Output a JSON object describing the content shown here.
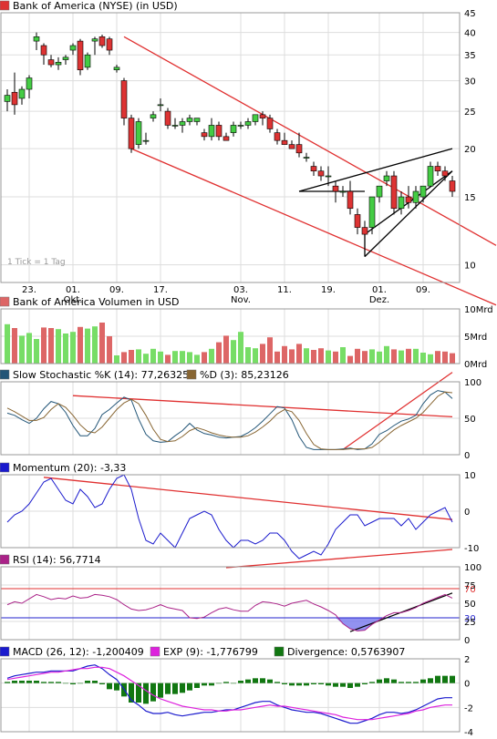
{
  "chart_data": [
    {
      "type": "candlestick",
      "title": "Bank of America (NYSE) (in USD)",
      "scale": "log",
      "ylim": [
        9,
        45
      ],
      "y_ticks": [
        10,
        15,
        20,
        25,
        30,
        35,
        40,
        45
      ],
      "x_ticks": [
        {
          "label": "23.",
          "i": 3,
          "sub": ""
        },
        {
          "label": "01.",
          "i": 9,
          "sub": "Okt."
        },
        {
          "label": "09.",
          "i": 15,
          "sub": ""
        },
        {
          "label": "17.",
          "i": 21,
          "sub": ""
        },
        {
          "label": "03.",
          "i": 32,
          "sub": "Nov."
        },
        {
          "label": "11.",
          "i": 38,
          "sub": ""
        },
        {
          "label": "19.",
          "i": 44,
          "sub": ""
        },
        {
          "label": "01.",
          "i": 51,
          "sub": "Dez."
        },
        {
          "label": "09.",
          "i": 57,
          "sub": ""
        }
      ],
      "note": "1 Tick = 1 Tag",
      "candles": [
        [
          26.5,
          28.5,
          25.0,
          27.5
        ],
        [
          28.0,
          31.5,
          24.5,
          26.0
        ],
        [
          27.0,
          29.0,
          26.0,
          28.5
        ],
        [
          28.5,
          31.0,
          27.0,
          30.5
        ],
        [
          38.0,
          40.0,
          36.0,
          39.0
        ],
        [
          37.0,
          37.5,
          33.0,
          35.0
        ],
        [
          34.0,
          35.0,
          32.5,
          33.0
        ],
        [
          33.0,
          34.5,
          32.0,
          33.5
        ],
        [
          34.0,
          35.0,
          33.0,
          34.5
        ],
        [
          36.0,
          37.5,
          35.0,
          37.0
        ],
        [
          38.0,
          38.5,
          31.0,
          32.0
        ],
        [
          32.5,
          35.5,
          32.0,
          35.0
        ],
        [
          38.0,
          39.0,
          35.0,
          38.5
        ],
        [
          39.0,
          39.5,
          36.5,
          37.0
        ],
        [
          38.5,
          39.0,
          35.0,
          36.0
        ],
        [
          32.0,
          33.0,
          31.5,
          32.5
        ],
        [
          30.0,
          30.5,
          23.0,
          24.0
        ],
        [
          24.0,
          24.5,
          19.5,
          20.0
        ],
        [
          20.5,
          24.0,
          20.0,
          23.5
        ],
        [
          21.0,
          22.0,
          20.5,
          21.0
        ],
        [
          24.0,
          25.0,
          23.5,
          24.5
        ],
        [
          26.0,
          27.0,
          25.0,
          26.0
        ],
        [
          25.0,
          25.5,
          22.5,
          23.0
        ],
        [
          23.0,
          24.0,
          22.5,
          23.0
        ],
        [
          23.0,
          24.0,
          22.0,
          23.5
        ],
        [
          23.5,
          24.5,
          23.0,
          24.0
        ],
        [
          23.5,
          24.0,
          23.0,
          24.0
        ],
        [
          22.0,
          22.5,
          21.0,
          21.5
        ],
        [
          21.5,
          24.0,
          21.0,
          23.0
        ],
        [
          23.0,
          23.5,
          21.0,
          21.5
        ],
        [
          21.5,
          22.0,
          21.0,
          21.0
        ],
        [
          22.0,
          23.5,
          21.5,
          23.0
        ],
        [
          23.0,
          23.5,
          22.5,
          23.0
        ],
        [
          23.0,
          24.0,
          22.5,
          23.5
        ],
        [
          23.5,
          24.5,
          23.0,
          24.5
        ],
        [
          24.5,
          25.0,
          23.0,
          24.0
        ],
        [
          24.0,
          24.5,
          22.0,
          22.5
        ],
        [
          22.0,
          22.5,
          20.5,
          21.0
        ],
        [
          21.0,
          22.0,
          20.5,
          20.5
        ],
        [
          20.5,
          21.0,
          20.0,
          20.0
        ],
        [
          20.5,
          22.0,
          19.0,
          19.5
        ],
        [
          19.0,
          19.5,
          18.5,
          19.0
        ],
        [
          18.0,
          18.5,
          17.0,
          17.5
        ],
        [
          17.5,
          18.0,
          16.5,
          17.0
        ],
        [
          17.0,
          18.0,
          16.0,
          17.0
        ],
        [
          16.0,
          16.5,
          14.5,
          15.5
        ],
        [
          15.5,
          16.0,
          15.0,
          15.5
        ],
        [
          15.5,
          16.5,
          13.5,
          14.0
        ],
        [
          13.5,
          14.0,
          12.0,
          12.5
        ],
        [
          12.5,
          13.0,
          11.5,
          12.0
        ],
        [
          12.5,
          15.0,
          12.0,
          15.0
        ],
        [
          15.0,
          16.0,
          14.5,
          16.0
        ],
        [
          16.5,
          17.5,
          16.0,
          17.0
        ],
        [
          17.0,
          17.5,
          13.5,
          14.0
        ],
        [
          14.0,
          15.5,
          13.5,
          15.0
        ],
        [
          15.0,
          16.0,
          14.0,
          14.5
        ],
        [
          14.5,
          16.0,
          14.0,
          15.5
        ],
        [
          15.0,
          16.0,
          14.5,
          16.0
        ],
        [
          16.0,
          18.5,
          16.0,
          18.0
        ],
        [
          18.0,
          18.5,
          17.0,
          17.5
        ],
        [
          17.5,
          18.0,
          16.5,
          17.0
        ],
        [
          16.5,
          17.0,
          15.0,
          15.5
        ]
      ],
      "lines": [
        {
          "color": "#e03030",
          "x1": 16,
          "y1": 39.0,
          "x2": 61,
          "y2": 13.0,
          "ext": "right"
        },
        {
          "color": "#e03030",
          "x1": 17,
          "y1": 20.0,
          "x2": 61,
          "y2": 8.8,
          "ext": "right"
        },
        {
          "color": "#000000",
          "x1": 40,
          "y1": 15.5,
          "x2": 61,
          "y2": 20.0
        },
        {
          "color": "#000000",
          "x1": 49,
          "y1": 12.0,
          "x2": 61,
          "y2": 17.5
        },
        {
          "color": "#000000",
          "x1": 40,
          "y1": 15.5,
          "x2": 49,
          "y2": 15.5
        },
        {
          "color": "#000000",
          "x1": 49,
          "y1": 10.5,
          "x2": 49,
          "y2": 12.0
        },
        {
          "color": "#000000",
          "x1": 49,
          "y1": 10.5,
          "x2": 61,
          "y2": 17.5
        }
      ]
    },
    {
      "type": "bar",
      "title": "Bank of America Volumen in USD",
      "ylim": [
        0,
        10
      ],
      "y_ticks": [
        {
          "v": 0,
          "label": "0Mrd"
        },
        {
          "v": 5,
          "label": "5Mrd"
        },
        {
          "v": 10,
          "label": "10Mrd"
        }
      ],
      "values": [
        7.2,
        6.5,
        5.1,
        5.6,
        4.5,
        6.6,
        6.5,
        6.3,
        5.5,
        5.8,
        6.7,
        6.4,
        6.8,
        7.5,
        5.0,
        1.5,
        2.1,
        2.5,
        2.6,
        1.8,
        2.7,
        2.2,
        1.6,
        2.3,
        2.3,
        2.1,
        1.6,
        2.1,
        2.7,
        3.9,
        5.1,
        4.3,
        5.8,
        3.0,
        2.8,
        3.6,
        4.8,
        2.2,
        3.2,
        2.6,
        3.6,
        2.8,
        2.5,
        2.8,
        2.4,
        2.2,
        3.0,
        1.4,
        2.7,
        2.3,
        2.6,
        2.2,
        3.2,
        2.6,
        2.4,
        2.7,
        2.7,
        2.0,
        1.7,
        2.3,
        2.2,
        1.9
      ]
    },
    {
      "type": "line",
      "title_k": "Slow Stochastic %K (14): 77,26325",
      "title_d": "%D (3): 85,23126",
      "ylim": [
        0,
        100
      ],
      "y_ticks": [
        0,
        50,
        100
      ],
      "series": [
        {
          "name": "Slow Stochastic %K (14): 77,26325",
          "color": "#225577",
          "values": [
            57,
            54,
            48,
            43,
            50,
            63,
            73,
            70,
            58,
            40,
            26,
            26,
            36,
            55,
            62,
            71,
            79,
            75,
            49,
            28,
            19,
            17,
            18,
            26,
            33,
            43,
            34,
            29,
            27,
            24,
            23,
            24,
            25,
            30,
            37,
            46,
            56,
            66,
            64,
            48,
            25,
            10,
            7,
            7,
            7,
            7,
            8,
            9,
            7,
            8,
            15,
            28,
            33,
            40,
            46,
            49,
            54,
            70,
            82,
            88,
            86,
            77
          ]
        },
        {
          "name": "%D (3): 85,23126",
          "color": "#886633",
          "values": [
            64,
            59,
            53,
            47,
            47,
            51,
            62,
            70,
            65,
            54,
            41,
            32,
            30,
            38,
            50,
            62,
            71,
            76,
            70,
            54,
            35,
            21,
            18,
            19,
            25,
            33,
            37,
            34,
            30,
            27,
            25,
            24,
            24,
            26,
            31,
            38,
            46,
            56,
            62,
            59,
            47,
            29,
            14,
            8,
            7,
            7,
            7,
            8,
            8,
            8,
            10,
            17,
            26,
            34,
            40,
            45,
            50,
            58,
            69,
            80,
            86,
            85
          ]
        }
      ],
      "lines": [
        {
          "color": "#e03030",
          "x1": 9,
          "y1": 81,
          "x2": 61,
          "y2": 52
        },
        {
          "color": "#e03030",
          "x1": 46,
          "y1": 7,
          "x2": 61,
          "y2": 113
        }
      ]
    },
    {
      "type": "line",
      "title": "Momentum (20): -3,33",
      "ylim": [
        -10,
        10
      ],
      "y_ticks": [
        -10,
        0,
        10
      ],
      "series": [
        {
          "name": "Momentum (20): -3,33",
          "color": "#1a1acd",
          "values": [
            -3,
            -1,
            0,
            2,
            5,
            8,
            9,
            6,
            3,
            2,
            6,
            4,
            1,
            2,
            6,
            9,
            10,
            6,
            -2,
            -8,
            -9,
            -6,
            -8,
            -10,
            -6,
            -2,
            -1,
            0,
            -1,
            -5,
            -8,
            -10,
            -8,
            -8,
            -9,
            -8,
            -6,
            -6,
            -8,
            -11,
            -13,
            -12,
            -11,
            -12,
            -9,
            -5,
            -3,
            -1,
            -1,
            -4,
            -3,
            -2,
            -2,
            -2,
            -4,
            -2,
            -5,
            -3,
            -1,
            0,
            1,
            -3
          ]
        }
      ],
      "lines": [
        {
          "color": "#e03030",
          "x1": 5,
          "y1": 9.3,
          "x2": 61,
          "y2": -2.3
        },
        {
          "color": "#e03030",
          "x1": 30,
          "y1": -15.5,
          "x2": 61,
          "y2": -10.5
        }
      ]
    },
    {
      "type": "line",
      "title": "RSI (14): 56,7714",
      "ylim": [
        0,
        100
      ],
      "y_ticks": [
        0,
        25,
        50,
        75,
        100
      ],
      "ref_lines": [
        {
          "v": 70,
          "label": "70",
          "color": "#e03030"
        },
        {
          "v": 30,
          "label": "30",
          "color": "#2222cc"
        }
      ],
      "series": [
        {
          "name": "RSI (14): 56,7714",
          "color": "#aa2288",
          "values": [
            48,
            52,
            50,
            56,
            62,
            59,
            55,
            57,
            56,
            60,
            57,
            58,
            62,
            61,
            59,
            55,
            48,
            42,
            40,
            41,
            44,
            48,
            44,
            42,
            40,
            30,
            29,
            31,
            37,
            42,
            44,
            41,
            39,
            39,
            47,
            52,
            51,
            49,
            46,
            50,
            52,
            54,
            49,
            45,
            40,
            34,
            22,
            15,
            12,
            13,
            21,
            27,
            33,
            37,
            37,
            40,
            44,
            50,
            54,
            58,
            62,
            57
          ]
        }
      ],
      "lines": [
        {
          "color": "#000000",
          "x1": 47,
          "y1": 11,
          "x2": 61,
          "y2": 64
        }
      ]
    },
    {
      "type": "line",
      "title_macd": "MACD (26, 12): -1,200409",
      "title_exp": "EXP (9): -1,776799",
      "title_div": "Divergence: 0,5763907",
      "ylim": [
        -4,
        2
      ],
      "y_ticks": [
        -4,
        -2,
        0,
        2
      ],
      "series": [
        {
          "name": "MACD (26, 12): -1,200409",
          "color": "#1a1acd",
          "values": [
            0.4,
            0.6,
            0.7,
            0.8,
            0.9,
            0.9,
            1.0,
            1.0,
            1.0,
            1.0,
            1.2,
            1.4,
            1.5,
            1.2,
            0.7,
            0.3,
            -0.5,
            -1.4,
            -1.8,
            -2.3,
            -2.5,
            -2.5,
            -2.4,
            -2.6,
            -2.7,
            -2.6,
            -2.5,
            -2.4,
            -2.4,
            -2.3,
            -2.2,
            -2.2,
            -2.0,
            -1.8,
            -1.6,
            -1.5,
            -1.5,
            -1.8,
            -2.0,
            -2.2,
            -2.3,
            -2.4,
            -2.4,
            -2.5,
            -2.7,
            -2.9,
            -3.1,
            -3.3,
            -3.3,
            -3.1,
            -2.9,
            -2.6,
            -2.4,
            -2.4,
            -2.5,
            -2.4,
            -2.2,
            -1.9,
            -1.6,
            -1.3,
            -1.2,
            -1.2
          ]
        },
        {
          "name": "EXP (9): -1,776799",
          "color": "#dd22dd",
          "values": [
            0.3,
            0.4,
            0.5,
            0.6,
            0.7,
            0.8,
            0.9,
            0.9,
            1.0,
            1.1,
            1.2,
            1.2,
            1.3,
            1.3,
            1.2,
            0.9,
            0.6,
            0.2,
            -0.2,
            -0.6,
            -1.0,
            -1.3,
            -1.5,
            -1.7,
            -1.9,
            -2.0,
            -2.1,
            -2.2,
            -2.2,
            -2.3,
            -2.3,
            -2.2,
            -2.2,
            -2.1,
            -2.0,
            -1.9,
            -1.8,
            -1.9,
            -1.9,
            -2.0,
            -2.1,
            -2.2,
            -2.3,
            -2.4,
            -2.5,
            -2.6,
            -2.8,
            -2.9,
            -3.0,
            -3.0,
            -3.0,
            -2.9,
            -2.8,
            -2.7,
            -2.6,
            -2.5,
            -2.3,
            -2.2,
            -2.0,
            -1.9,
            -1.8,
            -1.8
          ]
        },
        {
          "name": "Divergence: 0,5763907",
          "color": "#117711",
          "kind": "bar",
          "values": [
            0.1,
            0.2,
            0.2,
            0.2,
            0.2,
            0.1,
            0.1,
            0.1,
            0.0,
            -0.1,
            0.0,
            0.2,
            0.2,
            -0.1,
            -0.5,
            -0.6,
            -1.1,
            -1.6,
            -1.6,
            -1.7,
            -1.5,
            -1.2,
            -0.9,
            -0.9,
            -0.8,
            -0.6,
            -0.4,
            -0.2,
            -0.2,
            0.0,
            0.1,
            0.0,
            0.2,
            0.3,
            0.4,
            0.4,
            0.3,
            0.1,
            -0.1,
            -0.2,
            -0.2,
            -0.2,
            -0.1,
            -0.1,
            -0.2,
            -0.3,
            -0.3,
            -0.4,
            -0.3,
            -0.1,
            0.1,
            0.3,
            0.4,
            0.3,
            0.1,
            0.1,
            0.1,
            0.3,
            0.4,
            0.6,
            0.6,
            0.6
          ]
        }
      ]
    }
  ],
  "colors": {
    "up": "#44cc44",
    "down": "#dd3333",
    "grid": "#dddddd",
    "frame": "#999999",
    "legend_red": "#dd3333",
    "legend_pink": "#dd6666",
    "legend_teal": "#225577",
    "legend_olive": "#886633",
    "legend_blue": "#1a1acd",
    "legend_purple": "#aa2288",
    "legend_magenta": "#dd22dd",
    "legend_green": "#117711"
  }
}
